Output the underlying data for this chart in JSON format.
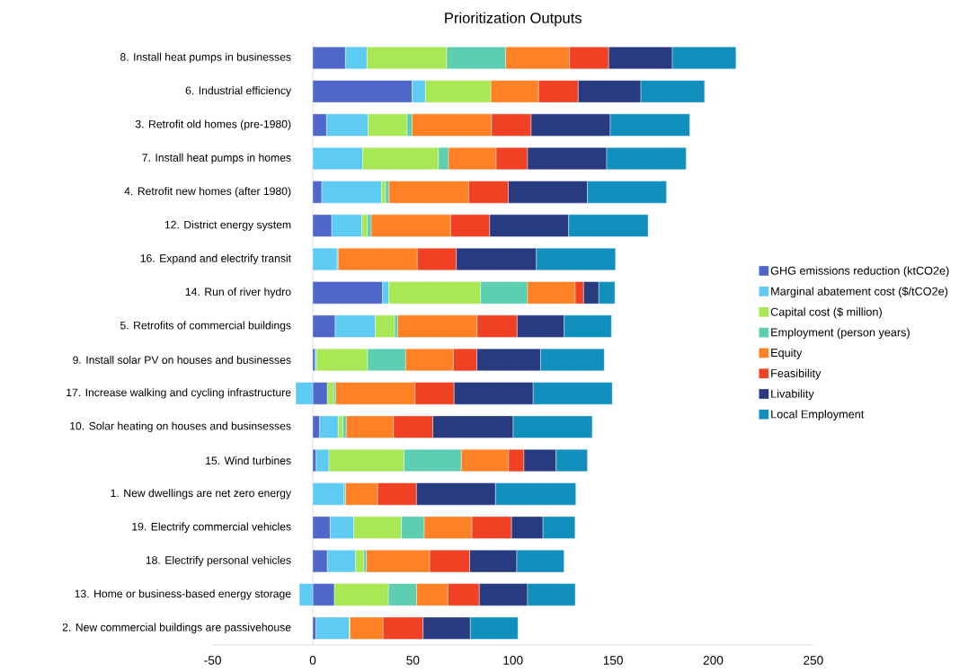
{
  "chart_data": {
    "type": "bar",
    "orientation": "horizontal",
    "stacked": true,
    "title": "Prioritization Outputs",
    "categories": [
      "8. Install heat pumps in businesses",
      "6. Industrial efficiency",
      "3.  Retrofit old homes (pre-1980)",
      "7. Install heat pumps in homes",
      "4. Retrofit new homes (after 1980)",
      "12. District energy system",
      "16. Expand and electrify transit",
      "14. Run of river hydro",
      "5. Retrofits of commercial buildings",
      "9. Install solar PV on houses and businesses",
      "17. Increase walking and cycling infrastructure",
      "10. Solar heating on houses and businsesses",
      "15. Wind turbines",
      "1. New dwellings are net zero energy",
      "19. Electrify commercial vehicles",
      "18. Electrify personal vehicles",
      "13. Home or business-based energy storage",
      "2. New commercial buildings are passivehouse"
    ],
    "series": [
      {
        "name": "GHG emissions reduction (ktCO2e)",
        "color": "#4f67c8",
        "values": [
          16.3,
          49.6,
          6.9,
          0,
          4.5,
          9.5,
          0,
          34.8,
          11.2,
          1.2,
          7.3,
          3.4,
          1.7,
          0,
          8.7,
          7.3,
          10.8,
          1.6
        ]
      },
      {
        "name": "Marginal abatement cost ($/tCO2e)",
        "color": "#5ecbf2",
        "values": [
          10.8,
          6.7,
          20.7,
          24.9,
          29.9,
          15,
          12.2,
          3.2,
          20.1,
          0.7,
          -8.5,
          9.3,
          6.4,
          15.7,
          11.8,
          14.1,
          -6.7,
          16.6
        ]
      },
      {
        "name": "Capital cost ($ million)",
        "color": "#a8e855",
        "values": [
          39.8,
          32.7,
          19.5,
          37.9,
          2,
          2.8,
          0,
          45.8,
          9.6,
          25.5,
          3.2,
          2.3,
          37.5,
          0,
          23.8,
          4.1,
          27,
          0.4
        ]
      },
      {
        "name": "Employment (person years)",
        "color": "#5dceb0",
        "values": [
          29.5,
          null,
          2.5,
          5,
          1.7,
          1.9,
          0.5,
          23.5,
          1.5,
          19,
          0.9,
          1.7,
          28.6,
          0.7,
          11.4,
          1.3,
          14.1,
          0
        ]
      },
      {
        "name": "Equity",
        "color": "#fe8125",
        "values": [
          31.9,
          23.8,
          39.7,
          23.8,
          39.8,
          39.7,
          39.5,
          23.8,
          39.7,
          23.8,
          39.7,
          23.6,
          23.6,
          16,
          23.8,
          31.6,
          15.6,
          16.5
        ]
      },
      {
        "name": "Feasibility",
        "color": "#f04125",
        "values": [
          19.5,
          19.8,
          19.8,
          15.7,
          19.8,
          19.5,
          19.5,
          4.2,
          20,
          11.8,
          19.5,
          19.7,
          7.7,
          19.4,
          19.8,
          20,
          15.7,
          20
        ]
      },
      {
        "name": "Livability",
        "color": "#283a80",
        "values": [
          31.8,
          31.3,
          39.5,
          39.5,
          39.5,
          39.4,
          40,
          7.6,
          23.5,
          31.8,
          39.5,
          40.1,
          16,
          39.5,
          15.7,
          23.5,
          24.1,
          23.6
        ]
      },
      {
        "name": "Local Employment",
        "color": "#1290bd",
        "values": [
          31.8,
          31.8,
          39.7,
          39.7,
          39.5,
          39.7,
          39.5,
          8,
          23.6,
          31.8,
          39.5,
          39.5,
          15.7,
          40.1,
          16,
          23.6,
          23.8,
          23.8
        ]
      }
    ],
    "xlim": [
      -50,
      250
    ],
    "xticks": [
      -50,
      0,
      50,
      100,
      150,
      200,
      250
    ],
    "grid": false,
    "legend": "right"
  }
}
